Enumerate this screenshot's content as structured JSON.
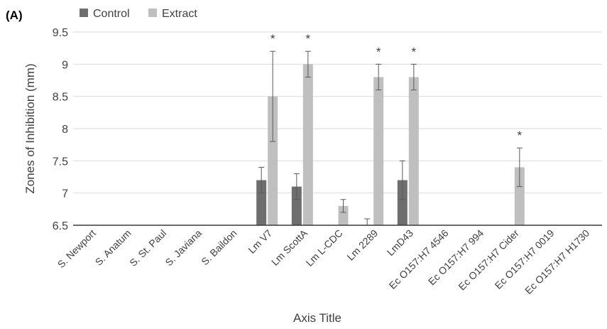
{
  "panel_label": "(A)",
  "chart_data": {
    "type": "bar",
    "title": "",
    "xlabel": "Axis Title",
    "ylabel": "Zones of Inhibition (mm)",
    "ylim": [
      6.5,
      9.5
    ],
    "yticks": [
      "6.5",
      "7",
      "7.5",
      "8",
      "8.5",
      "9",
      "9.5"
    ],
    "grid": true,
    "legend_position": "top-left",
    "categories": [
      "S. Newport",
      "S. Anatum",
      "S. St. Paul",
      "S. Javiana",
      "S. Baildon",
      "Lm V7",
      "Lm ScottA",
      "Lm L-CDC",
      "Lm  2289",
      "LmD43",
      "Ec O157:H7 4546",
      "Ec O157:H7 994",
      "Ec O157:H7 Cider",
      "Ec O157:H7 0019",
      "Ec O157:H7 H1730"
    ],
    "series": [
      {
        "name": "Control",
        "color": "#6e6e6e",
        "values": [
          6.5,
          6.5,
          6.5,
          6.5,
          6.5,
          7.2,
          7.1,
          6.5,
          6.5,
          7.2,
          6.5,
          6.5,
          6.5,
          6.5,
          6.5
        ],
        "errors": [
          null,
          null,
          null,
          null,
          null,
          0.2,
          0.2,
          null,
          0.1,
          0.3,
          null,
          null,
          null,
          null,
          null
        ]
      },
      {
        "name": "Extract",
        "color": "#bfbfbf",
        "values": [
          6.5,
          6.5,
          6.5,
          6.5,
          6.5,
          8.5,
          9.0,
          6.8,
          8.8,
          8.8,
          6.5,
          6.5,
          7.4,
          6.5,
          6.5
        ],
        "errors": [
          null,
          null,
          null,
          null,
          null,
          0.7,
          0.2,
          0.1,
          0.2,
          0.2,
          null,
          null,
          0.3,
          null,
          null
        ]
      }
    ],
    "annotations": [
      {
        "category_index": 5,
        "series": "Extract",
        "text": "*"
      },
      {
        "category_index": 6,
        "series": "Extract",
        "text": "*"
      },
      {
        "category_index": 8,
        "series": "Extract",
        "text": "*"
      },
      {
        "category_index": 9,
        "series": "Extract",
        "text": "*"
      },
      {
        "category_index": 12,
        "series": "Extract",
        "text": "*"
      }
    ]
  }
}
